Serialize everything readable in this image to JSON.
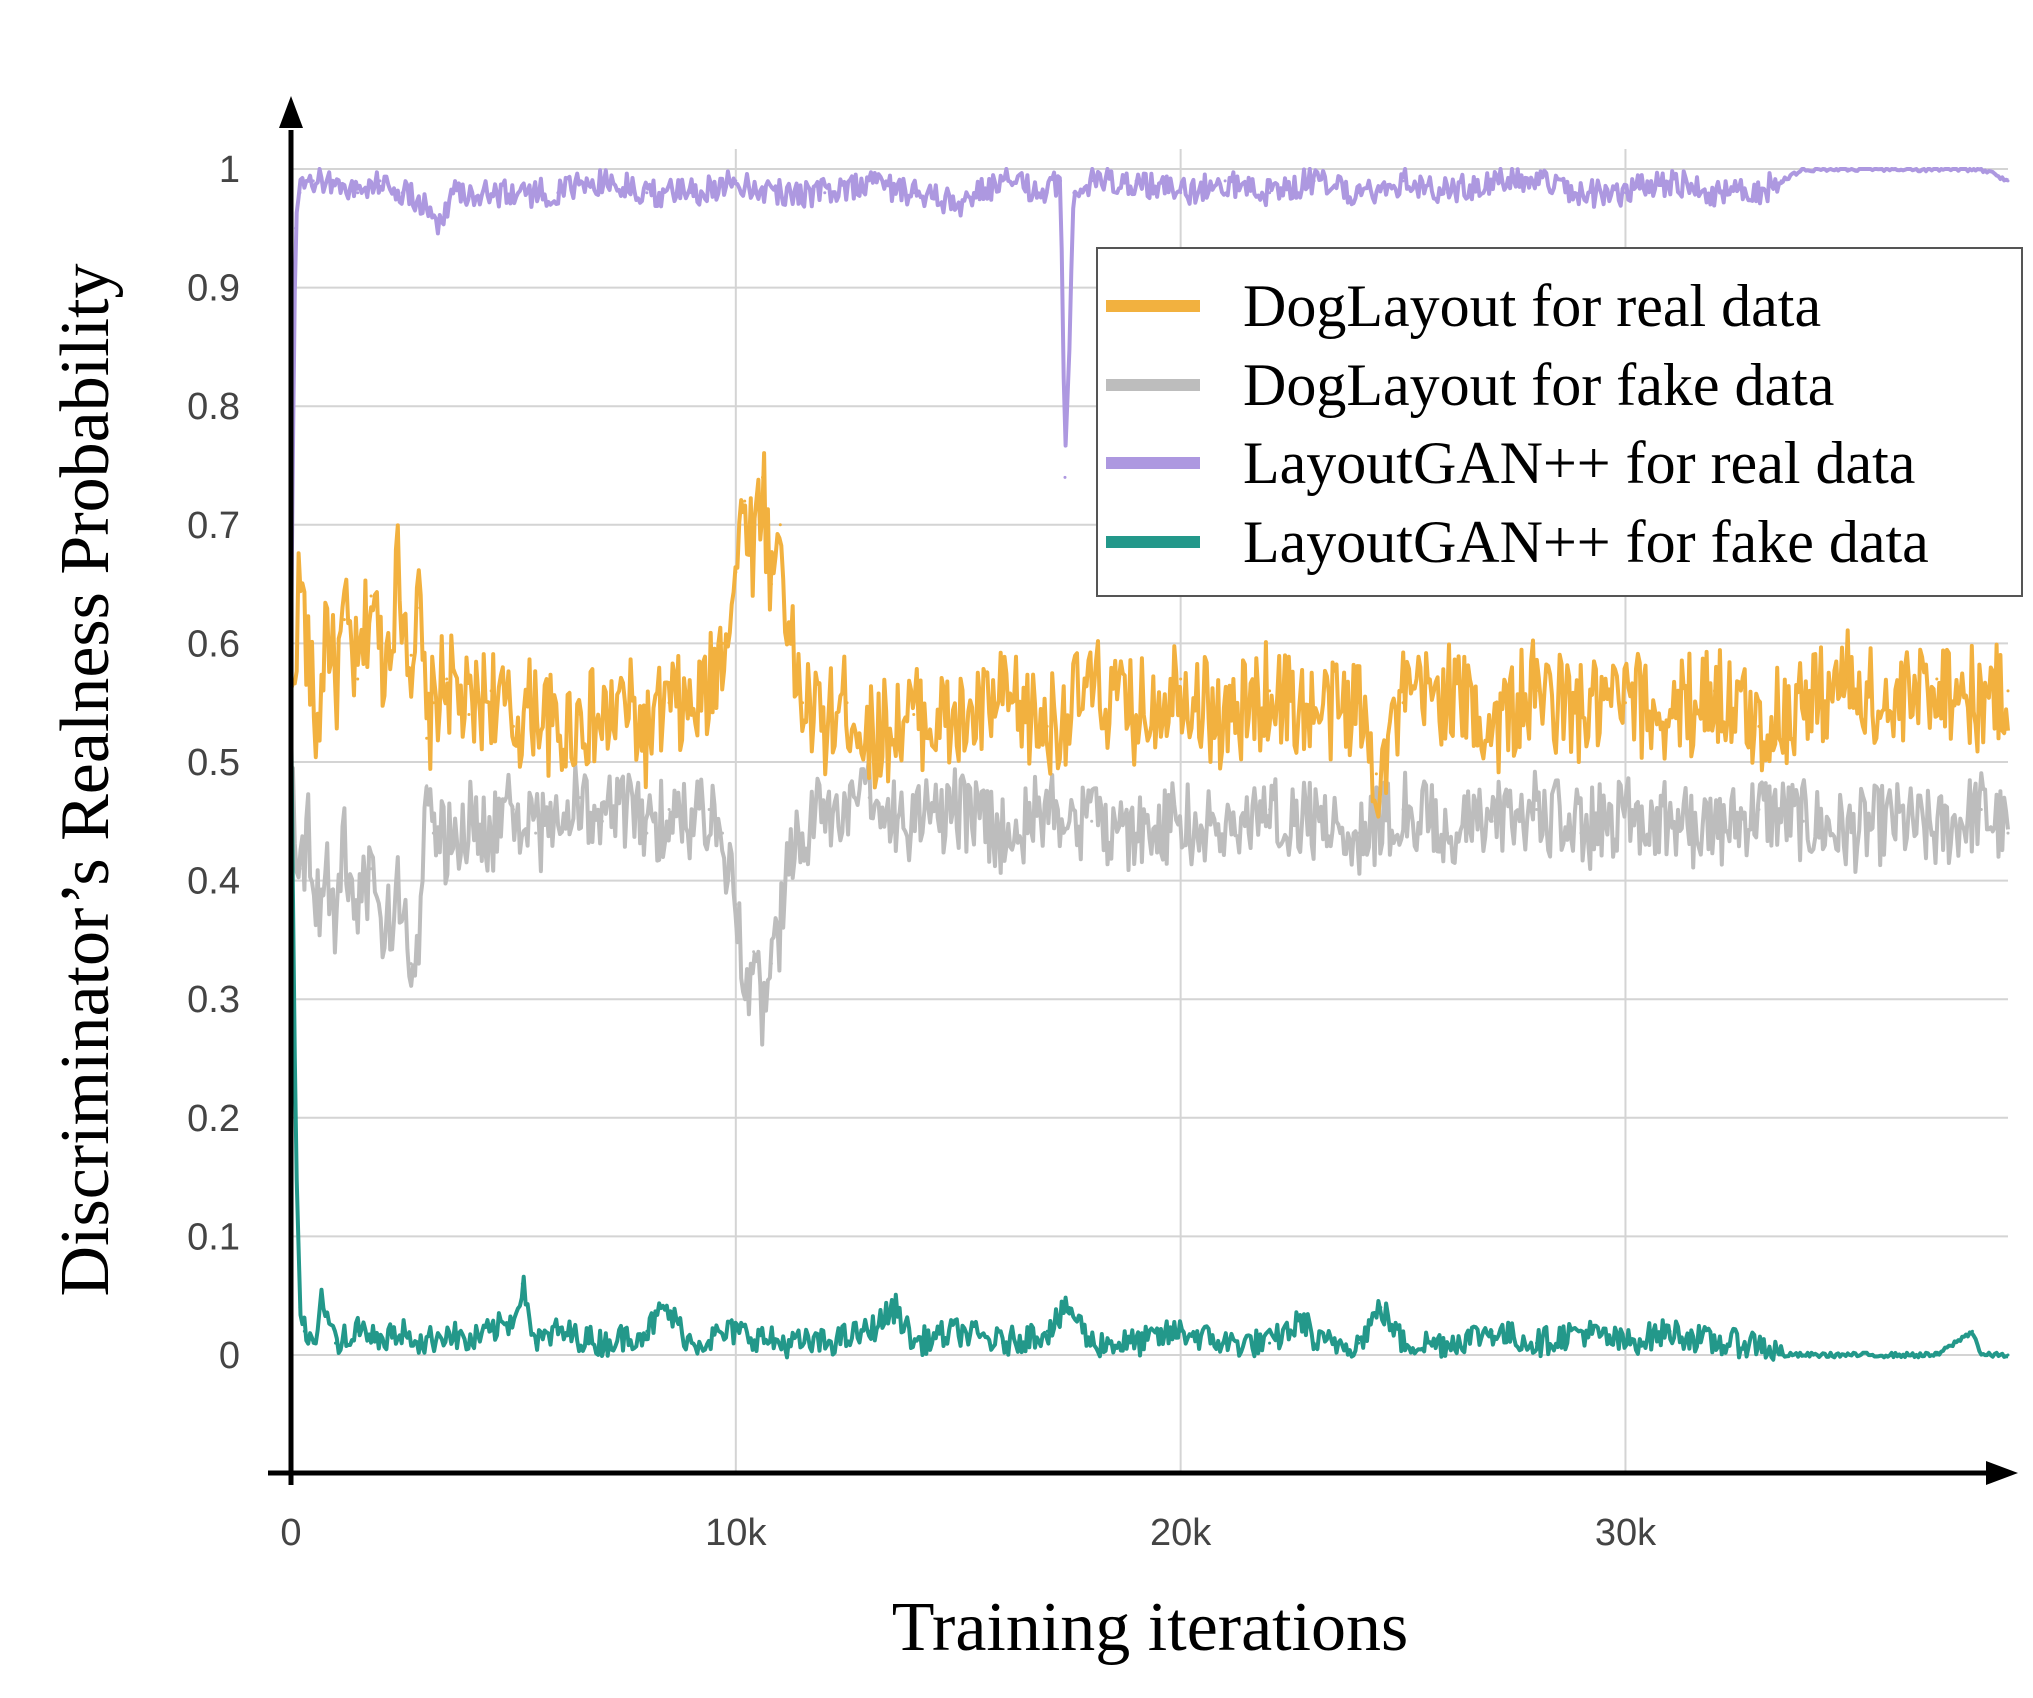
{
  "chart_data": {
    "type": "line",
    "title": "",
    "xlabel": "Training iterations",
    "ylabel": "Discriminator’s Realness Probability",
    "xlim": [
      0,
      38600
    ],
    "ylim": [
      -0.1,
      1.1
    ],
    "grid": true,
    "legend_position": "top-right",
    "x_ticks": [
      {
        "value": 0,
        "label": "0"
      },
      {
        "value": 10000,
        "label": "10k"
      },
      {
        "value": 20000,
        "label": "20k"
      },
      {
        "value": 30000,
        "label": "30k"
      }
    ],
    "y_ticks": [
      {
        "value": 0,
        "label": "0"
      },
      {
        "value": 0.1,
        "label": "0.1"
      },
      {
        "value": 0.2,
        "label": "0.2"
      },
      {
        "value": 0.3,
        "label": "0.3"
      },
      {
        "value": 0.4,
        "label": "0.4"
      },
      {
        "value": 0.5,
        "label": "0.5"
      },
      {
        "value": 0.6,
        "label": "0.6"
      },
      {
        "value": 0.7,
        "label": "0.7"
      },
      {
        "value": 0.8,
        "label": "0.8"
      },
      {
        "value": 0.9,
        "label": "0.9"
      },
      {
        "value": 1,
        "label": "1"
      }
    ],
    "series": [
      {
        "name": "DogLayout for real data",
        "color": "#f2b13f",
        "x": [
          0,
          200,
          400,
          600,
          800,
          1000,
          1200,
          1500,
          1800,
          2100,
          2400,
          2700,
          2900,
          3050,
          3200,
          3500,
          4000,
          4500,
          5000,
          5500,
          6000,
          6500,
          7000,
          7500,
          8000,
          8500,
          9000,
          9400,
          9700,
          10000,
          10200,
          10400,
          10600,
          10800,
          11000,
          11200,
          11500,
          12000,
          12500,
          13000,
          14000,
          15000,
          16000,
          17000,
          18000,
          19000,
          20000,
          21000,
          22000,
          23000,
          24000,
          24400,
          25000,
          26000,
          27000,
          28000,
          29000,
          30000,
          31000,
          32000,
          33000,
          34000,
          35000,
          36000,
          37000,
          38000,
          38600
        ],
        "values": [
          0.54,
          0.66,
          0.58,
          0.52,
          0.63,
          0.56,
          0.62,
          0.57,
          0.64,
          0.58,
          0.66,
          0.59,
          0.63,
          0.52,
          0.55,
          0.57,
          0.54,
          0.56,
          0.53,
          0.55,
          0.52,
          0.54,
          0.53,
          0.55,
          0.52,
          0.55,
          0.54,
          0.56,
          0.6,
          0.66,
          0.72,
          0.68,
          0.74,
          0.65,
          0.7,
          0.6,
          0.55,
          0.53,
          0.55,
          0.52,
          0.54,
          0.53,
          0.55,
          0.53,
          0.56,
          0.54,
          0.57,
          0.53,
          0.56,
          0.54,
          0.55,
          0.49,
          0.55,
          0.56,
          0.53,
          0.56,
          0.54,
          0.55,
          0.54,
          0.56,
          0.53,
          0.55,
          0.57,
          0.54,
          0.57,
          0.55,
          0.56
        ]
      },
      {
        "name": "DogLayout for fake data",
        "color": "#bdbdbd",
        "x": [
          0,
          200,
          400,
          600,
          800,
          1000,
          1200,
          1500,
          1800,
          2100,
          2400,
          2700,
          2900,
          3050,
          3200,
          3500,
          4000,
          4500,
          5000,
          5500,
          6000,
          6500,
          7000,
          7500,
          8000,
          8500,
          9000,
          9400,
          9700,
          10000,
          10200,
          10400,
          10600,
          10800,
          11000,
          11200,
          11500,
          12000,
          12500,
          13000,
          14000,
          15000,
          16000,
          17000,
          18000,
          19000,
          20000,
          21000,
          22000,
          23000,
          24000,
          25000,
          26000,
          27000,
          28000,
          29000,
          30000,
          31000,
          32000,
          33000,
          34000,
          35000,
          36000,
          37000,
          38000,
          38600
        ],
        "values": [
          0.5,
          0.41,
          0.44,
          0.38,
          0.42,
          0.36,
          0.43,
          0.37,
          0.41,
          0.35,
          0.39,
          0.33,
          0.37,
          0.48,
          0.44,
          0.43,
          0.45,
          0.44,
          0.46,
          0.44,
          0.45,
          0.47,
          0.45,
          0.46,
          0.44,
          0.46,
          0.45,
          0.46,
          0.44,
          0.38,
          0.3,
          0.34,
          0.28,
          0.33,
          0.36,
          0.41,
          0.44,
          0.46,
          0.45,
          0.47,
          0.45,
          0.46,
          0.44,
          0.46,
          0.45,
          0.44,
          0.45,
          0.44,
          0.46,
          0.45,
          0.44,
          0.46,
          0.44,
          0.45,
          0.46,
          0.44,
          0.46,
          0.45,
          0.44,
          0.46,
          0.45,
          0.44,
          0.45,
          0.44,
          0.46,
          0.44
        ]
      },
      {
        "name": "LayoutGAN++ for real data",
        "color": "#ad98e0",
        "x": [
          0,
          100,
          200,
          500,
          1000,
          1500,
          2000,
          2500,
          3000,
          3300,
          3600,
          4000,
          5000,
          6000,
          7000,
          8000,
          9000,
          10000,
          11000,
          12000,
          13000,
          14000,
          15000,
          16000,
          17000,
          17300,
          17400,
          17600,
          18000,
          19000,
          20000,
          21000,
          22000,
          23000,
          24000,
          25000,
          26000,
          27000,
          28000,
          29000,
          30000,
          31000,
          32000,
          33000,
          33500,
          34000,
          35000,
          36000,
          37000,
          38000,
          38600
        ],
        "values": [
          0.6,
          0.95,
          0.98,
          0.99,
          0.99,
          0.98,
          0.99,
          0.98,
          0.97,
          0.95,
          0.98,
          0.98,
          0.98,
          0.98,
          0.99,
          0.98,
          0.98,
          0.99,
          0.98,
          0.98,
          0.99,
          0.98,
          0.97,
          0.99,
          0.98,
          0.99,
          0.74,
          0.98,
          0.99,
          0.99,
          0.98,
          0.99,
          0.98,
          0.99,
          0.98,
          0.99,
          0.98,
          0.99,
          0.99,
          0.98,
          0.98,
          0.99,
          0.98,
          0.98,
          0.99,
          1.0,
          1.0,
          1.0,
          1.0,
          1.0,
          0.99
        ]
      },
      {
        "name": "LayoutGAN++ for fake data",
        "color": "#23988a",
        "x": [
          0,
          100,
          200,
          300,
          500,
          700,
          1000,
          1500,
          2000,
          2500,
          3000,
          3500,
          4000,
          4500,
          5000,
          5200,
          5500,
          6000,
          7000,
          8000,
          8400,
          9000,
          10000,
          11000,
          12000,
          13000,
          13600,
          14000,
          15000,
          16000,
          17000,
          17500,
          18000,
          19000,
          20000,
          21000,
          22000,
          22800,
          23000,
          24000,
          24500,
          25000,
          26000,
          27000,
          28000,
          29000,
          30000,
          31000,
          32000,
          33000,
          33500,
          34000,
          35000,
          36000,
          37000,
          37800,
          38000,
          38600
        ],
        "values": [
          0.55,
          0.2,
          0.04,
          0.02,
          0.01,
          0.05,
          0.01,
          0.02,
          0.01,
          0.02,
          0.01,
          0.02,
          0.01,
          0.02,
          0.03,
          0.06,
          0.01,
          0.02,
          0.01,
          0.02,
          0.04,
          0.01,
          0.02,
          0.01,
          0.01,
          0.02,
          0.04,
          0.01,
          0.02,
          0.01,
          0.02,
          0.04,
          0.01,
          0.01,
          0.02,
          0.01,
          0.01,
          0.03,
          0.01,
          0.01,
          0.04,
          0.01,
          0.01,
          0.02,
          0.01,
          0.02,
          0.01,
          0.02,
          0.01,
          0.01,
          0.0,
          0.0,
          0.0,
          0.0,
          0.0,
          0.02,
          0.0,
          0.0
        ]
      }
    ]
  }
}
